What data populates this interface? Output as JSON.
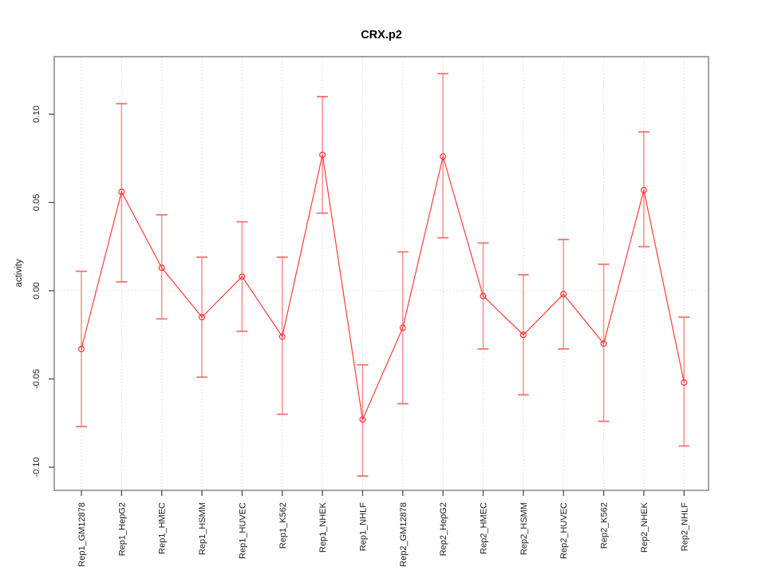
{
  "chart_data": {
    "type": "line",
    "title": "CRX.p2",
    "xlabel": "",
    "ylabel": "activity",
    "legend": "none",
    "marker": "open-circle",
    "grid": {
      "vertical": "dotted line at each category",
      "horizontal": "dotted line at y=0 only"
    },
    "ylim": [
      -0.113,
      0.133
    ],
    "yticks": [
      -0.1,
      -0.05,
      0.0,
      0.05,
      0.1
    ],
    "ytick_labels": [
      "-0.10",
      "-0.05",
      "0.00",
      "0.05",
      "0.10"
    ],
    "categories": [
      "Rep1_GM12878",
      "Rep1_HepG2",
      "Rep1_HMEC",
      "Rep1_HSMM",
      "Rep1_HUVEC",
      "Rep1_K562",
      "Rep1_NHEK",
      "Rep1_NHLF",
      "Rep2_GM12878",
      "Rep2_HepG2",
      "Rep2_HMEC",
      "Rep2_HSMM",
      "Rep2_HUVEC",
      "Rep2_K562",
      "Rep2_NHEK",
      "Rep2_NHLF"
    ],
    "series": [
      {
        "name": "activity",
        "values": [
          -0.033,
          0.056,
          0.013,
          -0.015,
          0.008,
          -0.026,
          0.077,
          -0.073,
          -0.021,
          0.076,
          -0.003,
          -0.025,
          -0.002,
          -0.03,
          0.057,
          -0.052
        ],
        "error_low": [
          -0.077,
          0.005,
          -0.016,
          -0.049,
          -0.023,
          -0.07,
          0.044,
          -0.105,
          -0.064,
          0.03,
          -0.033,
          -0.059,
          -0.033,
          -0.074,
          0.025,
          -0.088
        ],
        "error_high": [
          0.011,
          0.106,
          0.043,
          0.019,
          0.039,
          0.019,
          0.11,
          -0.042,
          0.022,
          0.123,
          0.027,
          0.009,
          0.029,
          0.015,
          0.09,
          -0.015
        ]
      }
    ],
    "colors": {
      "series_line": "#ff3c3c",
      "marker": "#ff3232",
      "error_bar": "#ff8c8c",
      "error_cap": "#ff7070",
      "grid": "#dcdcdc",
      "axis_box": "#9b9b9b",
      "tick": "#4d4d4d",
      "label_text": "#1a1a1a",
      "background": "#ffffff"
    }
  }
}
